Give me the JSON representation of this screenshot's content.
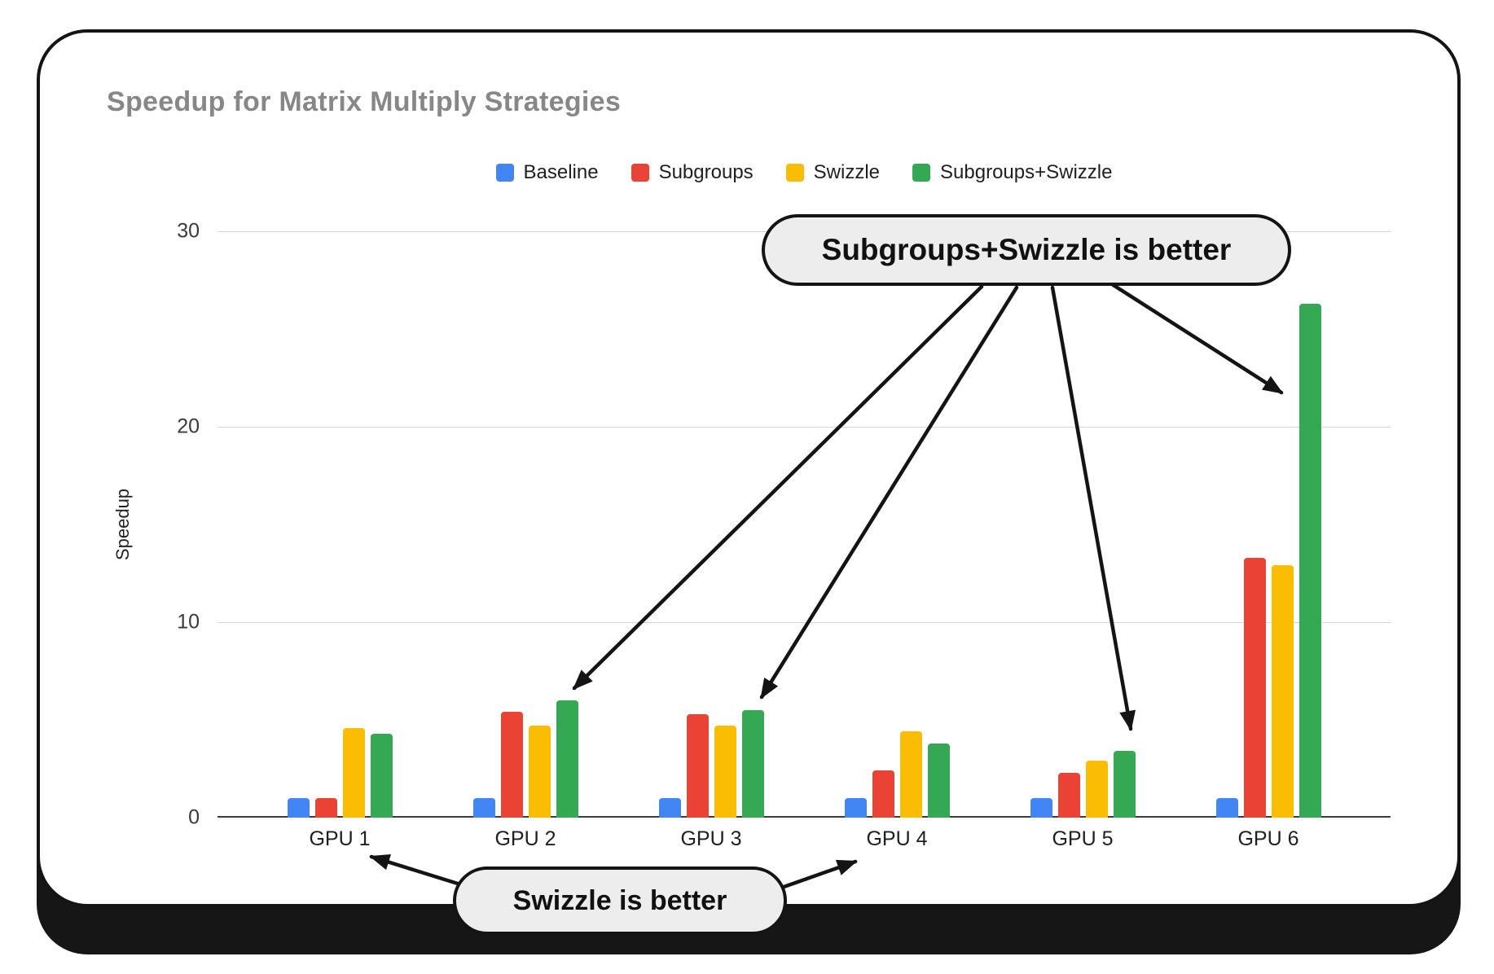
{
  "chart_data": {
    "type": "bar",
    "title": "Speedup for Matrix Multiply Strategies",
    "xlabel": "",
    "ylabel": "Speedup",
    "ylim": [
      0,
      30
    ],
    "yticks": [
      0,
      10,
      20,
      30
    ],
    "grid": true,
    "legend_position": "top",
    "categories": [
      "GPU 1",
      "GPU 2",
      "GPU 3",
      "GPU 4",
      "GPU 5",
      "GPU 6"
    ],
    "series": [
      {
        "name": "Baseline",
        "color": "#4285F4",
        "values": [
          1.0,
          1.0,
          1.0,
          1.0,
          1.0,
          1.0
        ]
      },
      {
        "name": "Subgroups",
        "color": "#EA4335",
        "values": [
          1.0,
          5.4,
          5.3,
          2.4,
          2.3,
          13.3
        ]
      },
      {
        "name": "Swizzle",
        "color": "#FBBC04",
        "values": [
          4.6,
          4.7,
          4.7,
          4.4,
          2.9,
          12.9
        ]
      },
      {
        "name": "Subgroups+Swizzle",
        "color": "#34A853",
        "values": [
          4.3,
          6.0,
          5.5,
          3.8,
          3.4,
          26.3
        ]
      }
    ],
    "annotations": [
      {
        "text": "Subgroups+Swizzle is better",
        "targets": [
          "GPU 2",
          "GPU 3",
          "GPU 5",
          "GPU 6"
        ]
      },
      {
        "text": "Swizzle is better",
        "targets": [
          "GPU 1",
          "GPU 4"
        ]
      }
    ]
  },
  "colors": {
    "baseline": "#4285F4",
    "subgroups": "#EA4335",
    "swizzle": "#FBBC04",
    "subgroups_swizzle": "#34A853",
    "card_border": "#141414",
    "title_text": "#878787"
  }
}
